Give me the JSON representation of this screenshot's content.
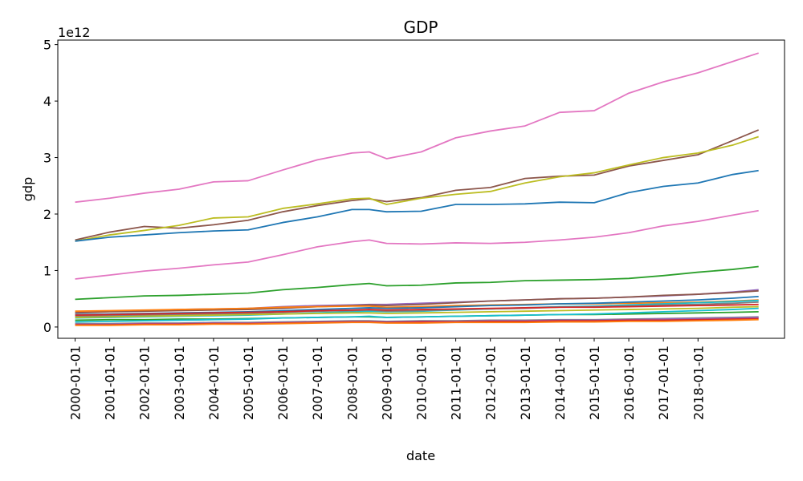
{
  "chart_data": {
    "type": "line",
    "title": "GDP",
    "xlabel": "date",
    "ylabel": "gdp",
    "y_offset_label": "1e12",
    "y_scale": 1000000000000,
    "ylim": [
      -0.2,
      5.08
    ],
    "yticks": [
      0,
      1,
      2,
      3,
      4,
      5
    ],
    "ytick_labels": [
      "0",
      "1",
      "2",
      "3",
      "4",
      "5"
    ],
    "xlim": [
      -0.5,
      20.5
    ],
    "xticks": [
      0,
      1,
      2,
      3,
      4,
      5,
      6,
      7,
      8,
      9,
      10,
      11,
      12,
      13,
      14,
      15,
      16,
      17,
      18
    ],
    "xtick_labels": [
      "2000-01-01",
      "2001-01-01",
      "2002-01-01",
      "2003-01-01",
      "2004-01-01",
      "2005-01-01",
      "2006-01-01",
      "2007-01-01",
      "2008-01-01",
      "2009-01-01",
      "2010-01-01",
      "2011-01-01",
      "2012-01-01",
      "2013-01-01",
      "2014-01-01",
      "2015-01-01",
      "2016-01-01",
      "2017-01-01",
      "2018-01-01"
    ],
    "grid": false,
    "legend": "none",
    "x": [
      0,
      1,
      2,
      3,
      4,
      5,
      6,
      7,
      8,
      8.5,
      9,
      10,
      11,
      12,
      13,
      14,
      15,
      16,
      17,
      18,
      19,
      19.75
    ],
    "series": [
      {
        "color": "#e377c2",
        "values": [
          2.21,
          2.28,
          2.37,
          2.44,
          2.57,
          2.59,
          2.78,
          2.96,
          3.08,
          3.1,
          2.98,
          3.1,
          3.35,
          3.47,
          3.56,
          3.8,
          3.83,
          4.14,
          4.34,
          4.5,
          4.7,
          4.85
        ]
      },
      {
        "color": "#8c564b",
        "values": [
          1.54,
          1.68,
          1.78,
          1.75,
          1.81,
          1.89,
          2.04,
          2.15,
          2.24,
          2.27,
          2.22,
          2.29,
          2.42,
          2.47,
          2.63,
          2.67,
          2.69,
          2.85,
          2.95,
          3.05,
          3.3,
          3.49
        ]
      },
      {
        "color": "#bcbd22",
        "values": [
          1.52,
          1.63,
          1.71,
          1.8,
          1.93,
          1.95,
          2.1,
          2.18,
          2.27,
          2.28,
          2.17,
          2.28,
          2.35,
          2.4,
          2.55,
          2.66,
          2.73,
          2.87,
          3.0,
          3.08,
          3.22,
          3.37
        ]
      },
      {
        "color": "#1f77b4",
        "values": [
          1.52,
          1.59,
          1.63,
          1.67,
          1.7,
          1.72,
          1.85,
          1.95,
          2.08,
          2.08,
          2.04,
          2.05,
          2.17,
          2.17,
          2.18,
          2.21,
          2.2,
          2.38,
          2.49,
          2.55,
          2.7,
          2.77
        ]
      },
      {
        "color": "#e377c2",
        "values": [
          0.85,
          0.92,
          0.99,
          1.04,
          1.1,
          1.15,
          1.28,
          1.42,
          1.51,
          1.54,
          1.48,
          1.47,
          1.49,
          1.48,
          1.5,
          1.54,
          1.59,
          1.67,
          1.79,
          1.87,
          1.98,
          2.06
        ]
      },
      {
        "color": "#2ca02c",
        "values": [
          0.49,
          0.52,
          0.55,
          0.56,
          0.58,
          0.6,
          0.66,
          0.7,
          0.75,
          0.77,
          0.73,
          0.74,
          0.78,
          0.79,
          0.82,
          0.83,
          0.84,
          0.86,
          0.91,
          0.97,
          1.02,
          1.07
        ]
      },
      {
        "color": "#9467bd",
        "values": [
          0.26,
          0.28,
          0.29,
          0.31,
          0.32,
          0.33,
          0.36,
          0.38,
          0.39,
          0.4,
          0.4,
          0.42,
          0.44,
          0.46,
          0.48,
          0.5,
          0.51,
          0.53,
          0.55,
          0.58,
          0.62,
          0.66
        ]
      },
      {
        "color": "#8c564b",
        "values": [
          0.25,
          0.27,
          0.28,
          0.29,
          0.3,
          0.31,
          0.33,
          0.36,
          0.38,
          0.39,
          0.38,
          0.4,
          0.43,
          0.46,
          0.48,
          0.5,
          0.51,
          0.53,
          0.56,
          0.58,
          0.61,
          0.64
        ]
      },
      {
        "color": "#ff7f0e",
        "values": [
          0.28,
          0.29,
          0.3,
          0.31,
          0.32,
          0.33,
          0.35,
          0.36,
          0.37,
          0.37,
          0.35,
          0.36,
          0.38,
          0.39,
          0.4,
          0.41,
          0.41,
          0.42,
          0.43,
          0.44,
          0.46,
          0.48
        ]
      },
      {
        "color": "#1f77b4",
        "values": [
          0.22,
          0.23,
          0.24,
          0.25,
          0.26,
          0.27,
          0.29,
          0.31,
          0.33,
          0.34,
          0.33,
          0.34,
          0.36,
          0.38,
          0.39,
          0.41,
          0.42,
          0.44,
          0.46,
          0.48,
          0.51,
          0.54
        ]
      },
      {
        "color": "#17becf",
        "values": [
          0.16,
          0.17,
          0.18,
          0.19,
          0.2,
          0.21,
          0.23,
          0.25,
          0.27,
          0.28,
          0.27,
          0.28,
          0.3,
          0.32,
          0.34,
          0.36,
          0.37,
          0.39,
          0.41,
          0.43,
          0.45,
          0.47
        ]
      },
      {
        "color": "#7f7f7f",
        "values": [
          0.19,
          0.2,
          0.21,
          0.22,
          0.23,
          0.24,
          0.26,
          0.28,
          0.29,
          0.3,
          0.28,
          0.29,
          0.31,
          0.32,
          0.33,
          0.35,
          0.36,
          0.37,
          0.39,
          0.4,
          0.42,
          0.44
        ]
      },
      {
        "color": "#d62728",
        "values": [
          0.21,
          0.22,
          0.23,
          0.24,
          0.25,
          0.26,
          0.27,
          0.29,
          0.3,
          0.31,
          0.3,
          0.31,
          0.32,
          0.33,
          0.34,
          0.35,
          0.35,
          0.36,
          0.37,
          0.38,
          0.39,
          0.4
        ]
      },
      {
        "color": "#bcbd22",
        "values": [
          0.17,
          0.18,
          0.19,
          0.2,
          0.21,
          0.22,
          0.23,
          0.24,
          0.25,
          0.25,
          0.24,
          0.25,
          0.26,
          0.27,
          0.28,
          0.29,
          0.3,
          0.31,
          0.32,
          0.33,
          0.35,
          0.36
        ]
      },
      {
        "color": "#2ca02c",
        "values": [
          0.12,
          0.13,
          0.13,
          0.14,
          0.14,
          0.15,
          0.16,
          0.17,
          0.18,
          0.18,
          0.17,
          0.18,
          0.19,
          0.2,
          0.21,
          0.22,
          0.22,
          0.23,
          0.24,
          0.25,
          0.26,
          0.27
        ]
      },
      {
        "color": "#17becf",
        "values": [
          0.09,
          0.1,
          0.11,
          0.12,
          0.13,
          0.14,
          0.16,
          0.17,
          0.18,
          0.19,
          0.17,
          0.18,
          0.19,
          0.2,
          0.21,
          0.22,
          0.23,
          0.25,
          0.27,
          0.29,
          0.31,
          0.33
        ]
      },
      {
        "color": "#7f7f7f",
        "values": [
          0.06,
          0.06,
          0.07,
          0.07,
          0.08,
          0.08,
          0.09,
          0.1,
          0.11,
          0.11,
          0.1,
          0.11,
          0.11,
          0.12,
          0.12,
          0.13,
          0.13,
          0.14,
          0.15,
          0.16,
          0.17,
          0.18
        ]
      },
      {
        "color": "#9467bd",
        "values": [
          0.05,
          0.05,
          0.06,
          0.06,
          0.07,
          0.07,
          0.08,
          0.09,
          0.1,
          0.1,
          0.09,
          0.1,
          0.1,
          0.11,
          0.11,
          0.12,
          0.12,
          0.13,
          0.14,
          0.15,
          0.16,
          0.17
        ]
      },
      {
        "color": "#d62728",
        "values": [
          0.04,
          0.04,
          0.05,
          0.05,
          0.06,
          0.06,
          0.07,
          0.08,
          0.09,
          0.09,
          0.08,
          0.09,
          0.09,
          0.1,
          0.1,
          0.11,
          0.11,
          0.12,
          0.12,
          0.13,
          0.14,
          0.15
        ]
      },
      {
        "color": "#ff7f0e",
        "values": [
          0.03,
          0.03,
          0.04,
          0.04,
          0.05,
          0.05,
          0.06,
          0.07,
          0.08,
          0.08,
          0.07,
          0.07,
          0.08,
          0.08,
          0.08,
          0.09,
          0.09,
          0.1,
          0.1,
          0.11,
          0.12,
          0.13
        ]
      }
    ]
  }
}
